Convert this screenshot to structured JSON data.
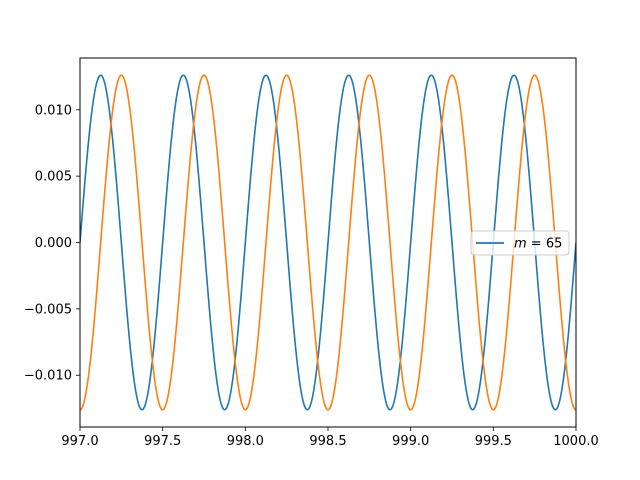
{
  "chart_data": {
    "type": "line",
    "title": "",
    "xlabel": "",
    "ylabel": "",
    "xlim": [
      997.0,
      1000.0
    ],
    "ylim": [
      -0.0139,
      0.0139
    ],
    "x_ticks": [
      997.0,
      997.5,
      998.0,
      998.5,
      999.0,
      999.5,
      1000.0
    ],
    "x_tick_labels": [
      "997.0",
      "997.5",
      "998.0",
      "998.5",
      "999.0",
      "999.5",
      "1000.0"
    ],
    "y_ticks": [
      0.01,
      0.005,
      0.0,
      -0.005,
      -0.01
    ],
    "y_tick_labels": [
      "0.010",
      "0.005",
      "0.000",
      "−0.005",
      "−0.010"
    ],
    "grid": false,
    "legend": {
      "position": "center-right",
      "entries": [
        {
          "label_italic": "m",
          "label_rest": " = 65",
          "color": "#1f77b4"
        }
      ]
    },
    "series": [
      {
        "name": "m = 65",
        "color": "#1f77b4",
        "function": "sin",
        "amplitude": 0.0126,
        "period": 0.5,
        "phase_origin": 997.0
      },
      {
        "color": "#ff7f0e",
        "function": "-cos",
        "amplitude": 0.0126,
        "period": 0.5,
        "phase_origin": 997.0
      }
    ]
  }
}
